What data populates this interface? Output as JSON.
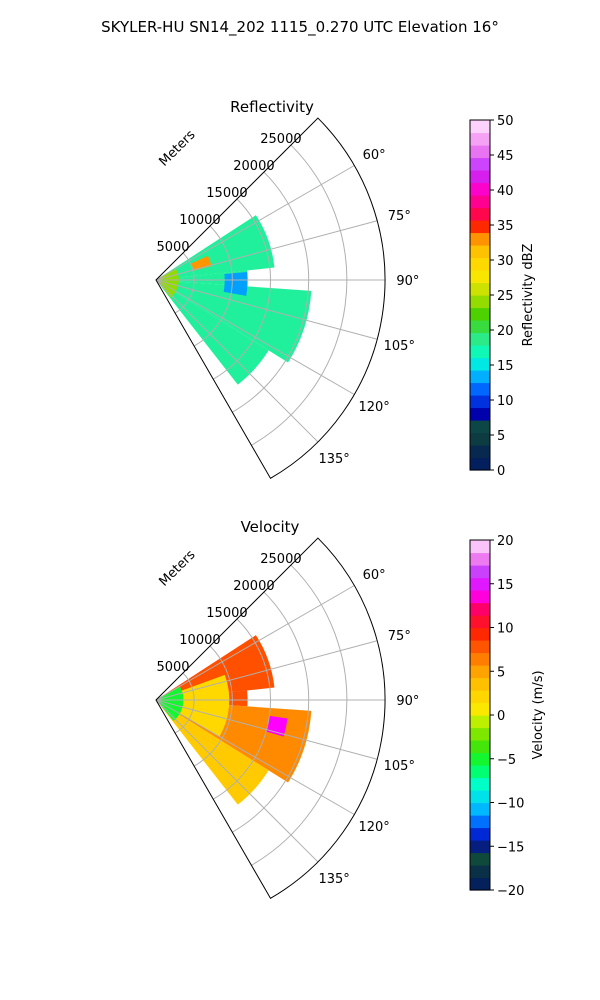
{
  "figure": {
    "title": "SKYLER-HU  SN14_202  1115_0.270 UTC Elevation 16°"
  },
  "chart_data": [
    {
      "type": "heatmap",
      "projection": "polar-sector",
      "title": "Reflectivity",
      "range_label": "Meters",
      "range_ticks": [
        5000,
        10000,
        15000,
        20000,
        25000
      ],
      "range_tick_labels": [
        "5000",
        "10000",
        "15000",
        "20000",
        "25000"
      ],
      "range_max": 30000,
      "azimuth_range": [
        45,
        150
      ],
      "azimuth_ticks": [
        60,
        75,
        90,
        105,
        120,
        135
      ],
      "azimuth_tick_labels": [
        "60°",
        "75°",
        "90°",
        "105°",
        "120°",
        "135°"
      ],
      "grid": true,
      "colorbar": {
        "label": "Reflectivity dBZ",
        "min": 0,
        "max": 50,
        "ticks": [
          0,
          5,
          10,
          15,
          20,
          25,
          30,
          35,
          40,
          45,
          50
        ],
        "tick_labels": [
          "0",
          "5",
          "10",
          "15",
          "20",
          "25",
          "30",
          "35",
          "40",
          "45",
          "50"
        ],
        "stops": [
          [
            0,
            "#001a66"
          ],
          [
            0.07,
            "#0a2e48"
          ],
          [
            0.12,
            "#0f5038"
          ],
          [
            0.16,
            "#0000aa"
          ],
          [
            0.22,
            "#0050ff"
          ],
          [
            0.28,
            "#00c8ff"
          ],
          [
            0.32,
            "#00ffd0"
          ],
          [
            0.38,
            "#30e880"
          ],
          [
            0.44,
            "#40d000"
          ],
          [
            0.5,
            "#b8e000"
          ],
          [
            0.56,
            "#ffe800"
          ],
          [
            0.62,
            "#ffc800"
          ],
          [
            0.66,
            "#ff9600"
          ],
          [
            0.7,
            "#ff1e00"
          ],
          [
            0.74,
            "#ff0060"
          ],
          [
            0.8,
            "#ff00c8"
          ],
          [
            0.86,
            "#c030ff"
          ],
          [
            0.92,
            "#f080f0"
          ],
          [
            1,
            "#ffe8ff"
          ]
        ]
      },
      "regions": [
        {
          "az": [
            57,
            84
          ],
          "r": [
            0,
            0.52
          ],
          "value": 18
        },
        {
          "az": [
            84,
            94
          ],
          "r": [
            0,
            0.4
          ],
          "value": 18
        },
        {
          "az": [
            94,
            122
          ],
          "r": [
            0,
            0.68
          ],
          "value": 18
        },
        {
          "az": [
            122,
            142
          ],
          "r": [
            0,
            0.58
          ],
          "value": 18
        },
        {
          "az": [
            60,
            140
          ],
          "r": [
            0,
            0.1
          ],
          "value": 24
        },
        {
          "az": [
            65,
            76
          ],
          "r": [
            0.17,
            0.25
          ],
          "value": 33
        },
        {
          "az": [
            85,
            100
          ],
          "r": [
            0.3,
            0.4
          ],
          "value": 13
        }
      ]
    },
    {
      "type": "heatmap",
      "projection": "polar-sector",
      "title": "Velocity",
      "range_label": "Meters",
      "range_ticks": [
        5000,
        10000,
        15000,
        20000,
        25000
      ],
      "range_tick_labels": [
        "5000",
        "10000",
        "15000",
        "20000",
        "25000"
      ],
      "range_max": 30000,
      "azimuth_range": [
        45,
        150
      ],
      "azimuth_ticks": [
        60,
        75,
        90,
        105,
        120,
        135
      ],
      "azimuth_tick_labels": [
        "60°",
        "75°",
        "90°",
        "105°",
        "120°",
        "135°"
      ],
      "grid": true,
      "colorbar": {
        "label": "Velocity (m/s)",
        "min": -20,
        "max": 20,
        "ticks": [
          -20,
          -15,
          -10,
          -5,
          0,
          5,
          10,
          15,
          20
        ],
        "tick_labels": [
          "−20",
          "−15",
          "−10",
          "−5",
          "0",
          "5",
          "10",
          "15",
          "20"
        ],
        "stops": [
          [
            0,
            "#001a66"
          ],
          [
            0.05,
            "#0a2e48"
          ],
          [
            0.1,
            "#0f5038"
          ],
          [
            0.14,
            "#0000aa"
          ],
          [
            0.18,
            "#0050ff"
          ],
          [
            0.24,
            "#00c8ff"
          ],
          [
            0.3,
            "#00ffd0"
          ],
          [
            0.36,
            "#00ff40"
          ],
          [
            0.42,
            "#50e000"
          ],
          [
            0.48,
            "#b8f000"
          ],
          [
            0.52,
            "#ffe800"
          ],
          [
            0.58,
            "#ffc800"
          ],
          [
            0.64,
            "#ff9600"
          ],
          [
            0.7,
            "#ff5000"
          ],
          [
            0.74,
            "#ff1e00"
          ],
          [
            0.8,
            "#ff0060"
          ],
          [
            0.85,
            "#ff00ff"
          ],
          [
            0.9,
            "#c030ff"
          ],
          [
            0.95,
            "#f080f0"
          ],
          [
            1,
            "#ffe8ff"
          ]
        ]
      },
      "regions": [
        {
          "az": [
            57,
            84
          ],
          "r": [
            0,
            0.52
          ],
          "value": 8
        },
        {
          "az": [
            84,
            94
          ],
          "r": [
            0,
            0.4
          ],
          "value": 8
        },
        {
          "az": [
            94,
            122
          ],
          "r": [
            0,
            0.68
          ],
          "value": 6
        },
        {
          "az": [
            122,
            142
          ],
          "r": [
            0,
            0.58
          ],
          "value": 3
        },
        {
          "az": [
            70,
            120
          ],
          "r": [
            0,
            0.32
          ],
          "value": 2
        },
        {
          "az": [
            60,
            140
          ],
          "r": [
            0,
            0.12
          ],
          "value": -5
        },
        {
          "az": [
            98,
            106
          ],
          "r": [
            0.5,
            0.58
          ],
          "value": 14
        }
      ]
    }
  ]
}
